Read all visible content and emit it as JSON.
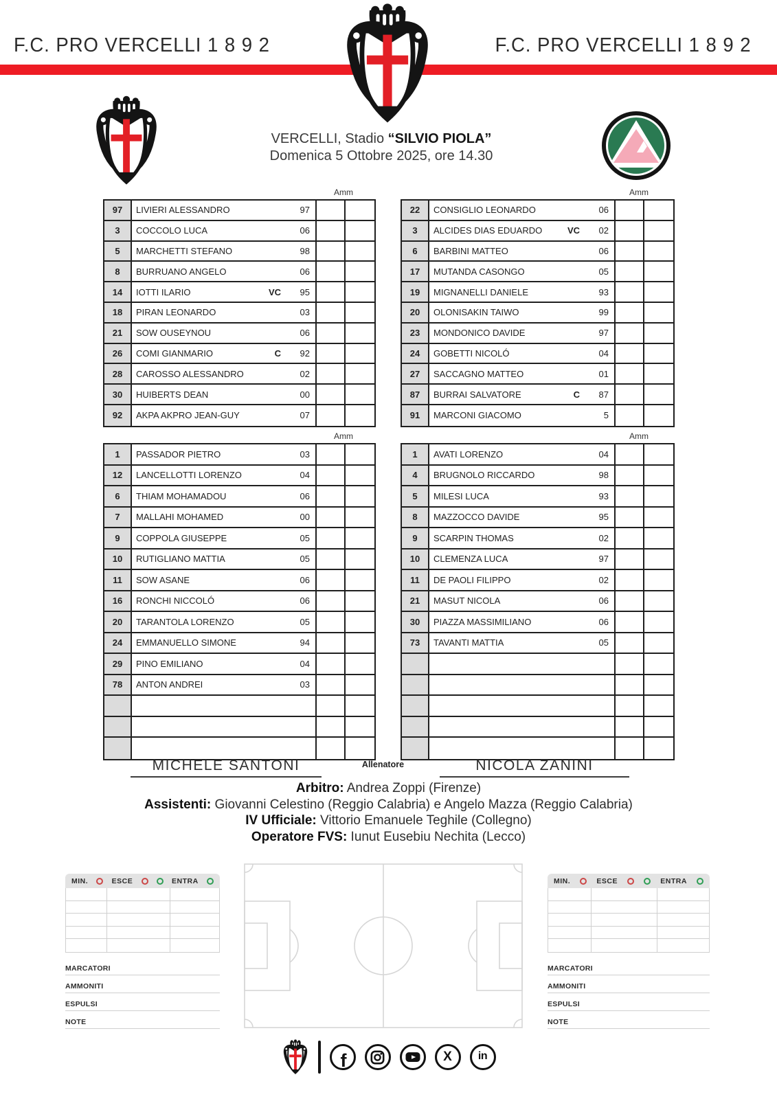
{
  "header": {
    "club_left": "F.C.  PRO VERCELLI  1 8 9 2",
    "club_right": "F.C.  PRO VERCELLI  1 8 9 2",
    "venue_prefix": "VERCELLI, Stadio ",
    "venue_stadium": "“SILVIO PIOLA”",
    "date_line": "Domenica 5 Ottobre 2025, ore 14.30"
  },
  "labels": {
    "amm": "Amm"
  },
  "rosters": {
    "home_starters": {
      "empty_rows": 0,
      "rows": [
        {
          "num": "97",
          "name": "LIVIERI ALESSANDRO",
          "cap": "",
          "year": "97"
        },
        {
          "num": "3",
          "name": "COCCOLO LUCA",
          "cap": "",
          "year": "06"
        },
        {
          "num": "5",
          "name": "MARCHETTI STEFANO",
          "cap": "",
          "year": "98"
        },
        {
          "num": "8",
          "name": "BURRUANO ANGELO",
          "cap": "",
          "year": "06"
        },
        {
          "num": "14",
          "name": "IOTTI ILARIO",
          "cap": "VC",
          "year": "95"
        },
        {
          "num": "18",
          "name": "PIRAN LEONARDO",
          "cap": "",
          "year": "03"
        },
        {
          "num": "21",
          "name": "SOW OUSEYNOU",
          "cap": "",
          "year": "06"
        },
        {
          "num": "26",
          "name": "COMI GIANMARIO",
          "cap": "C",
          "year": "92"
        },
        {
          "num": "28",
          "name": "CAROSSO ALESSANDRO",
          "cap": "",
          "year": "02"
        },
        {
          "num": "30",
          "name": "HUIBERTS DEAN",
          "cap": "",
          "year": "00"
        },
        {
          "num": "92",
          "name": "AKPA AKPRO JEAN-GUY",
          "cap": "",
          "year": "07"
        }
      ]
    },
    "away_starters": {
      "empty_rows": 0,
      "rows": [
        {
          "num": "22",
          "name": "CONSIGLIO LEONARDO",
          "cap": "",
          "year": "06"
        },
        {
          "num": "3",
          "name": "ALCIDES DIAS EDUARDO",
          "cap": "VC",
          "year": "02"
        },
        {
          "num": "6",
          "name": "BARBINI MATTEO",
          "cap": "",
          "year": "06"
        },
        {
          "num": "17",
          "name": "MUTANDA CASONGO",
          "cap": "",
          "year": "05"
        },
        {
          "num": "19",
          "name": "MIGNANELLI DANIELE",
          "cap": "",
          "year": "93"
        },
        {
          "num": "20",
          "name": "OLONISAKIN TAIWO",
          "cap": "",
          "year": "99"
        },
        {
          "num": "23",
          "name": "MONDONICO DAVIDE",
          "cap": "",
          "year": "97"
        },
        {
          "num": "24",
          "name": "GOBETTI NICOLÓ",
          "cap": "",
          "year": "04"
        },
        {
          "num": "27",
          "name": "SACCAGNO MATTEO",
          "cap": "",
          "year": "01"
        },
        {
          "num": "87",
          "name": "BURRAI SALVATORE",
          "cap": "C",
          "year": "87"
        },
        {
          "num": "91",
          "name": "MARCONI GIACOMO",
          "cap": "",
          "year": "5"
        }
      ]
    },
    "home_bench": {
      "empty_rows": 3,
      "rows": [
        {
          "num": "1",
          "name": "PASSADOR PIETRO",
          "cap": "",
          "year": "03"
        },
        {
          "num": "12",
          "name": "LANCELLOTTI LORENZO",
          "cap": "",
          "year": "04"
        },
        {
          "num": "6",
          "name": "THIAM MOHAMADOU",
          "cap": "",
          "year": "06"
        },
        {
          "num": "7",
          "name": "MALLAHI MOHAMED",
          "cap": "",
          "year": "00"
        },
        {
          "num": "9",
          "name": "COPPOLA GIUSEPPE",
          "cap": "",
          "year": "05"
        },
        {
          "num": "10",
          "name": "RUTIGLIANO MATTIA",
          "cap": "",
          "year": "05"
        },
        {
          "num": "11",
          "name": "SOW ASANE",
          "cap": "",
          "year": "06"
        },
        {
          "num": "16",
          "name": "RONCHI NICCOLÓ",
          "cap": "",
          "year": "06"
        },
        {
          "num": "20",
          "name": "TARANTOLA LORENZO",
          "cap": "",
          "year": "05"
        },
        {
          "num": "24",
          "name": "EMMANUELLO SIMONE",
          "cap": "",
          "year": "94"
        },
        {
          "num": "29",
          "name": "PINO EMILIANO",
          "cap": "",
          "year": "04"
        },
        {
          "num": "78",
          "name": "ANTON ANDREI",
          "cap": "",
          "year": "03"
        }
      ]
    },
    "away_bench": {
      "empty_rows": 5,
      "rows": [
        {
          "num": "1",
          "name": "AVATI LORENZO",
          "cap": "",
          "year": "04"
        },
        {
          "num": "4",
          "name": "BRUGNOLO RICCARDO",
          "cap": "",
          "year": "98"
        },
        {
          "num": "5",
          "name": "MILESI LUCA",
          "cap": "",
          "year": "93"
        },
        {
          "num": "8",
          "name": "MAZZOCCO DAVIDE",
          "cap": "",
          "year": "95"
        },
        {
          "num": "9",
          "name": "SCARPIN THOMAS",
          "cap": "",
          "year": "02"
        },
        {
          "num": "10",
          "name": "CLEMENZA LUCA",
          "cap": "",
          "year": "97"
        },
        {
          "num": "11",
          "name": "DE PAOLI FILIPPO",
          "cap": "",
          "year": "02"
        },
        {
          "num": "21",
          "name": "MASUT NICOLA",
          "cap": "",
          "year": "06"
        },
        {
          "num": "30",
          "name": "PIAZZA MASSIMILIANO",
          "cap": "",
          "year": "06"
        },
        {
          "num": "73",
          "name": "TAVANTI MATTIA",
          "cap": "",
          "year": "05"
        }
      ]
    }
  },
  "coaches": {
    "home": "MICHELE SANTONI",
    "label": "Allenatore",
    "away": "NICOLA ZANINI"
  },
  "officials": [
    {
      "label": "Arbitro:",
      "value": " Andrea Zoppi (Firenze)"
    },
    {
      "label": "Assistenti:",
      "value": " Giovanni Celestino (Reggio Calabria) e Angelo Mazza (Reggio Calabria)"
    },
    {
      "label": "IV Ufficiale:",
      "value": " Vittorio Emanuele Teghile (Collegno)"
    },
    {
      "label": "Operatore FVS:",
      "value": " Iunut Eusebiu Nechita (Lecco)"
    }
  ],
  "sub_table": {
    "min": "MIN.",
    "esce": "ESCE",
    "entra": "ENTRA",
    "rows": 5,
    "labels": [
      "MARCATORI",
      "AMMONITI",
      "ESPULSI",
      "NOTE"
    ]
  },
  "footer": {
    "icons": [
      "facebook",
      "instagram",
      "youtube",
      "x",
      "linkedin"
    ]
  },
  "colors": {
    "red": "#ee1c24",
    "cross_red": "#e31f26",
    "icon_red": "#cc4747",
    "icon_green": "#2f9e55",
    "cell_gray": "#dcdcdc",
    "border_dark": "#1f1f1f",
    "sub_border": "#cfcfcf",
    "pitch_line": "#d6d6d6",
    "text_dark": "#222222",
    "logo_green": "#2a7a52",
    "logo_pink": "#f5aab8"
  }
}
